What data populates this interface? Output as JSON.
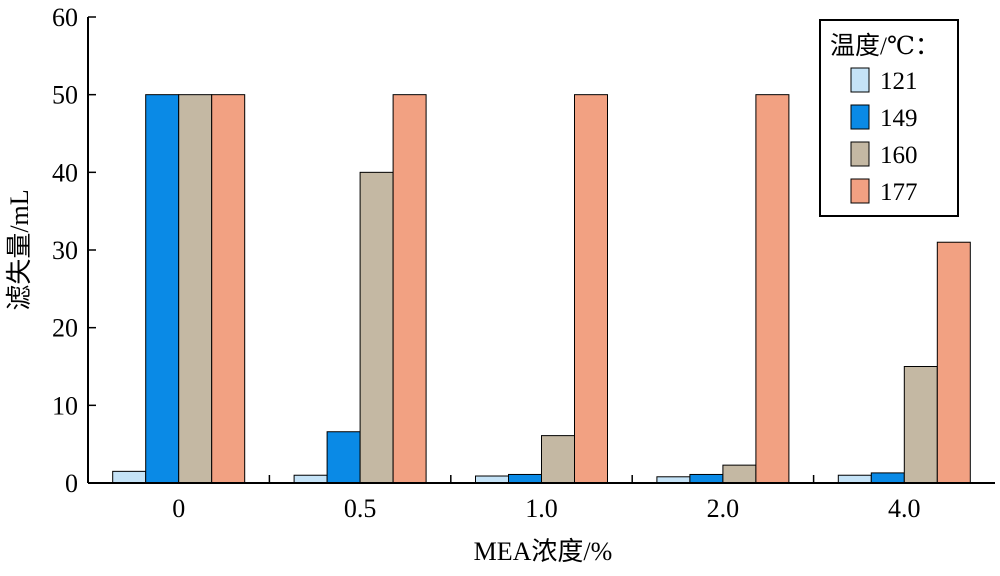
{
  "chart_data": {
    "type": "bar",
    "categories": [
      "0",
      "0.5",
      "1.0",
      "2.0",
      "4.0"
    ],
    "series": [
      {
        "name": "121",
        "color": "#c5e3f7",
        "values": [
          1.5,
          1.0,
          0.9,
          0.8,
          1.0
        ]
      },
      {
        "name": "149",
        "color": "#0a8ae6",
        "values": [
          50,
          6.6,
          1.1,
          1.1,
          1.3
        ]
      },
      {
        "name": "160",
        "color": "#c4b8a3",
        "values": [
          50,
          40,
          6.1,
          2.3,
          15
        ]
      },
      {
        "name": "177",
        "color": "#f2a182",
        "values": [
          50,
          50,
          50,
          50,
          31
        ]
      }
    ],
    "xlabel": "MEA浓度/%",
    "ylabel": "滤失量/mL",
    "ylim": [
      0,
      60
    ],
    "yticks": [
      "0",
      "10",
      "20",
      "30",
      "40",
      "50",
      "60"
    ],
    "legend": {
      "title": "温度/℃：",
      "placement": "top-right"
    },
    "grid": false
  }
}
